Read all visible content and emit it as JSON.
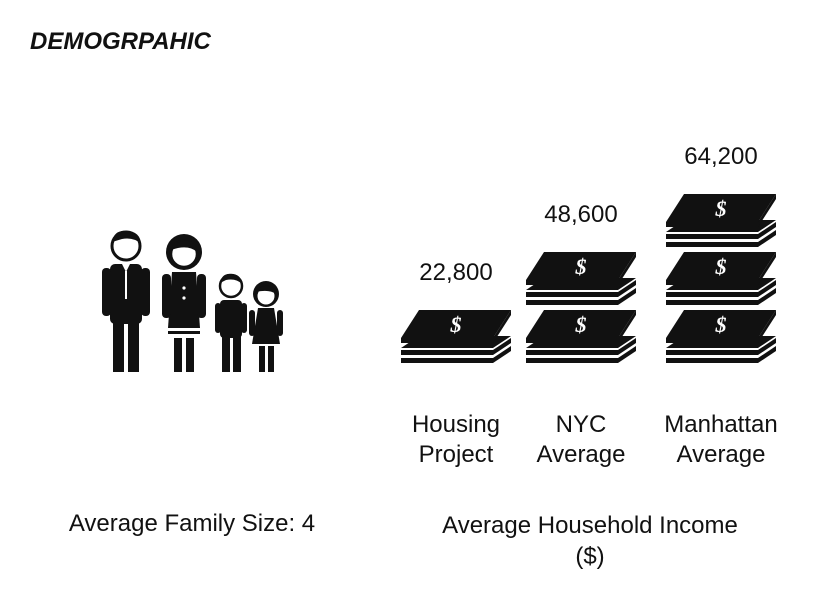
{
  "title": "DEMOGRPAHIC",
  "family": {
    "caption": "Average Family Size: 4",
    "icon": "family-icon",
    "size": 4
  },
  "income": {
    "caption": "Average Household Income ($)",
    "icon": "money-stack-icon"
  },
  "chart_data": {
    "type": "bar",
    "style": "pictogram",
    "categories": [
      "Housing Project",
      "NYC Average",
      "Manhattan Average"
    ],
    "category_lines": [
      [
        "Housing",
        "Project"
      ],
      [
        "NYC",
        "Average"
      ],
      [
        "Manhattan",
        "Average"
      ]
    ],
    "values": [
      22800,
      48600,
      64200
    ],
    "value_labels": [
      "22,800",
      "48,600",
      "64,200"
    ],
    "icon_counts": [
      1,
      2,
      3
    ],
    "xlabel": "Average Household Income ($)",
    "ylabel": "",
    "colors": {
      "icon": "#111111",
      "background": "#ffffff"
    }
  }
}
